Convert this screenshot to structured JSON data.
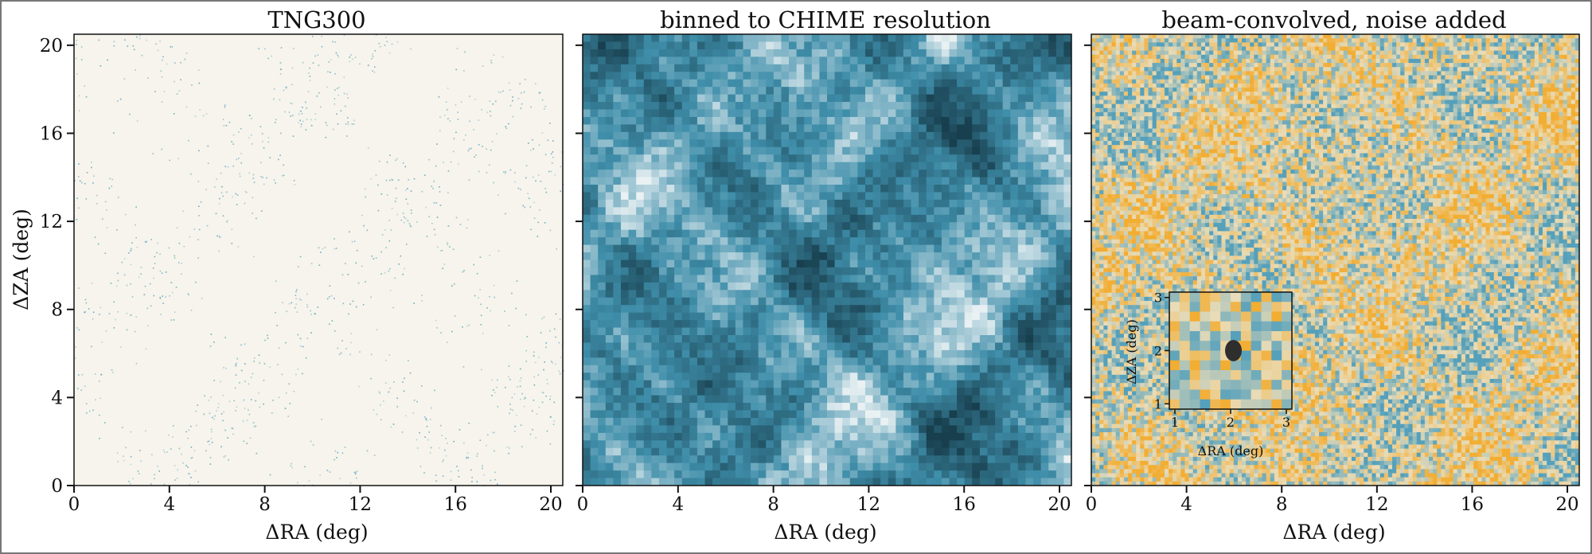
{
  "colors": {
    "tng_background": "#f6f4ec",
    "tng_points": "#4f9bbb",
    "chime_dark": "#183f4e",
    "chime_mid": "#3f8eaa",
    "chime_light": "#e9f1f3",
    "noise_blue": "#55a0bb",
    "noise_orange": "#f2ad33",
    "noise_cream": "#e9dcb8",
    "beam_ellipse": "#2e2e2e"
  },
  "chart_data": [
    {
      "type": "heatmap",
      "title": "TNG300",
      "xlabel": "ΔRA (deg)",
      "ylabel": "ΔZA (deg)",
      "xlim": [
        0,
        20.5
      ],
      "ylim": [
        0,
        20.5
      ],
      "xticks": [
        "0",
        "4",
        "8",
        "12",
        "16",
        "20"
      ],
      "yticks": [
        "0",
        "4",
        "8",
        "12",
        "16",
        "20"
      ],
      "colormap": "sparse point sources (blue on cream)"
    },
    {
      "type": "heatmap",
      "title": "binned to CHIME resolution",
      "xlabel": "ΔRA (deg)",
      "ylabel": "",
      "xlim": [
        0,
        20.5
      ],
      "ylim": [
        0,
        20.5
      ],
      "xticks": [
        "0",
        "4",
        "8",
        "12",
        "16",
        "20"
      ],
      "colormap": "white to dark blue"
    },
    {
      "type": "heatmap",
      "title": "beam-convolved, noise added",
      "xlabel": "ΔRA (deg)",
      "ylabel": "",
      "xlim": [
        0,
        20.5
      ],
      "ylim": [
        0,
        20.5
      ],
      "xticks": [
        "0",
        "4",
        "8",
        "12",
        "16",
        "20"
      ],
      "colormap": "blue-cream-orange diverging",
      "inset": {
        "xlabel": "ΔRA (deg)",
        "ylabel": "ΔZA (deg)",
        "xlim": [
          0.9,
          3.1
        ],
        "ylim": [
          0.9,
          3.1
        ],
        "xticks": [
          "1",
          "2",
          "3"
        ],
        "yticks": [
          "1",
          "2",
          "3"
        ],
        "beam_center": [
          2.05,
          2.0
        ],
        "beam_axes_deg": [
          0.15,
          0.2
        ]
      }
    }
  ]
}
